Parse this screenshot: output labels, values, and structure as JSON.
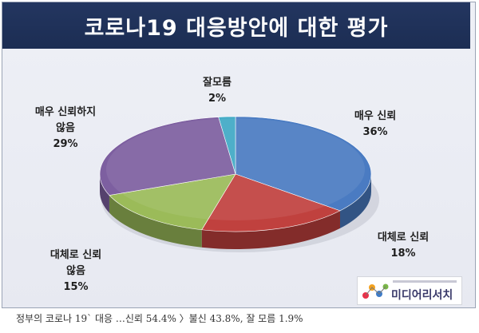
{
  "title": "코로나19 대응방안에 대한 평가",
  "chart_data": {
    "type": "pie",
    "title": "코로나19 대응방안에 대한 평가",
    "slices": [
      {
        "label": "매우 신뢰",
        "value": 36,
        "value_label": "36%",
        "color": "#4a7bc2"
      },
      {
        "label": "대체로 신뢰",
        "value": 18,
        "value_label": "18%",
        "color": "#c0413e"
      },
      {
        "label": "대체로 신뢰 않음",
        "value": 15,
        "value_label": "15%",
        "color": "#9bbb59"
      },
      {
        "label": "매우 신뢰하지 않음",
        "value": 29,
        "value_label": "29%",
        "color": "#7d5fa0"
      },
      {
        "label": "잘모름",
        "value": 2,
        "value_label": "2%",
        "color": "#3fa9c5"
      }
    ],
    "legend": "none"
  },
  "labels": {
    "very_trust": "매우 신뢰",
    "mostly_trust": "대체로 신뢰",
    "mostly_distrust_1": "대체로 신뢰",
    "mostly_distrust_2": "않음",
    "very_distrust_1": "매우 신뢰하지",
    "very_distrust_2": "않음",
    "dont_know": "잘모름"
  },
  "logo": {
    "text": "미디어리서치"
  },
  "caption": "정부의 코로나 19` 대응 …신뢰 54.4% 〉불신 43.8%, 잘 모름 1.9%"
}
